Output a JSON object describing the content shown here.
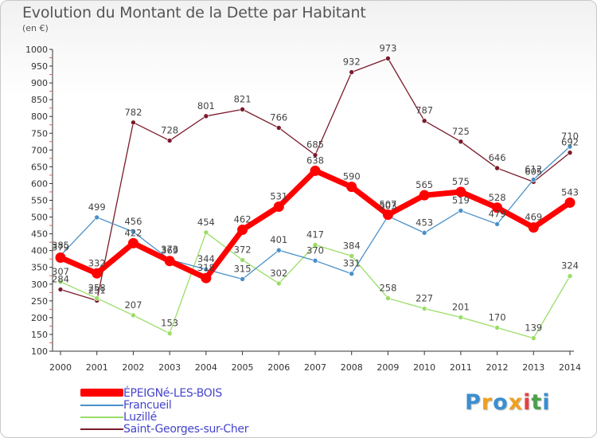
{
  "header": {
    "title": "Evolution du Montant de la Dette par Habitant",
    "unit": "(en €)"
  },
  "legend": [
    {
      "label": "ÉPEIGNé-LES-BOIS"
    },
    {
      "label": "Francueil"
    },
    {
      "label": "Luzillé"
    },
    {
      "label": "Saint-Georges-sur-Cher"
    }
  ],
  "logo": {
    "text": "Proxiti"
  },
  "chart_data": {
    "type": "line",
    "title": "Evolution du Montant de la Dette par Habitant",
    "subtitle": "(en €)",
    "xlabel": "",
    "ylabel": "",
    "ylim": [
      100,
      1000
    ],
    "y_ticks": [
      100,
      150,
      200,
      250,
      300,
      350,
      400,
      450,
      500,
      550,
      600,
      650,
      700,
      750,
      800,
      850,
      900,
      950,
      1000
    ],
    "grid": false,
    "legend_position": "bottom-left",
    "x": [
      "2000",
      "2001",
      "2002",
      "2003",
      "2004",
      "2005",
      "2006",
      "2007",
      "2008",
      "2009",
      "2010",
      "2011",
      "2012",
      "2013",
      "2014"
    ],
    "series": [
      {
        "name": "ÉPEIGNé-LES-BOIS",
        "color": "#ff0000",
        "values": [
          379,
          332,
          422,
          369,
          318,
          462,
          531,
          638,
          590,
          507,
          565,
          575,
          528,
          469,
          543
        ]
      },
      {
        "name": "Francueil",
        "color": "#4a90c8",
        "values": [
          385,
          499,
          456,
          373,
          344,
          315,
          401,
          370,
          331,
          503,
          453,
          519,
          479,
          612,
          710
        ]
      },
      {
        "name": "Luzillé",
        "color": "#99dd66",
        "values": [
          307,
          258,
          207,
          153,
          454,
          372,
          302,
          417,
          384,
          258,
          227,
          201,
          170,
          139,
          324
        ]
      },
      {
        "name": "Saint-Georges-sur-Cher",
        "color": "#7a1a2a",
        "values": [
          284,
          251,
          782,
          728,
          801,
          821,
          766,
          685,
          932,
          973,
          787,
          725,
          646,
          605,
          692
        ]
      }
    ]
  }
}
